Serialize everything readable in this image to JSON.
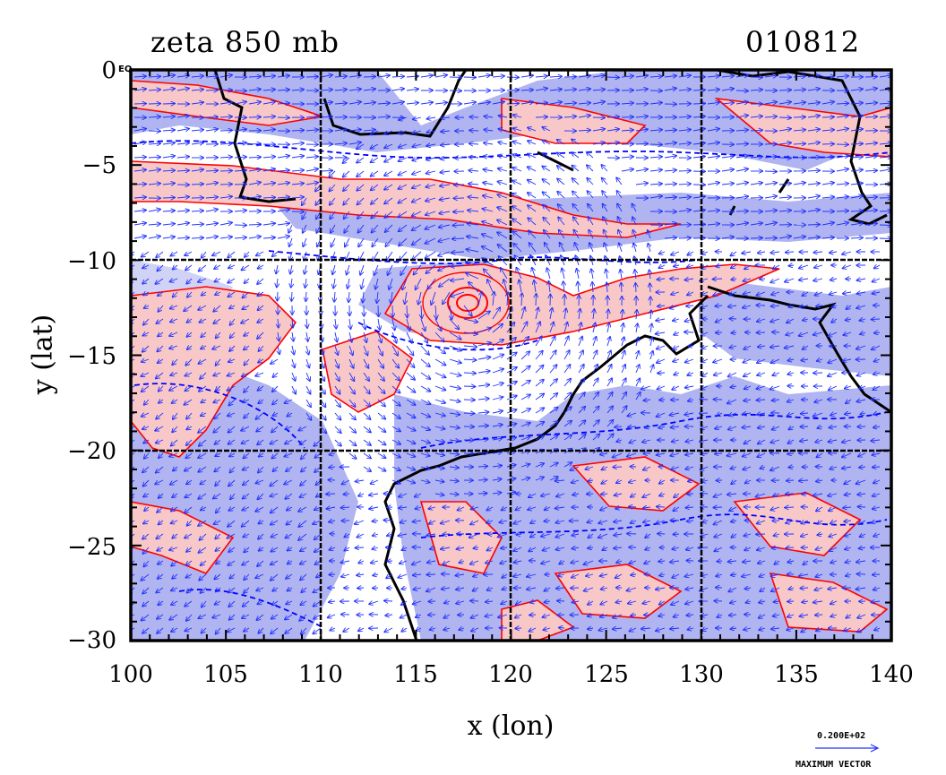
{
  "title_left": "zeta 850 mb",
  "title_right": "010812",
  "equator_label": "EQ",
  "xlabel": "x (lon)",
  "ylabel": "y (lat)",
  "x_ticks": [
    "100",
    "105",
    "110",
    "115",
    "120",
    "125",
    "130",
    "135",
    "140"
  ],
  "y_ticks": [
    "0",
    "−5",
    "−10",
    "−15",
    "−20",
    "−25",
    "−30"
  ],
  "vector_key": {
    "value": "0.200E+02",
    "label": "MAXIMUM VECTOR"
  },
  "colors": {
    "positive_fill": "#f8c8c8",
    "positive_line": "#ff0000",
    "negative_fill": "#b0b4f0",
    "negative_line": "#0000ff",
    "coastline": "#000000",
    "vectors": "#2030ff"
  },
  "chart_data": {
    "type": "contour map with wind vectors",
    "variable": "zeta 850 mb",
    "date": "010812",
    "xlim": [
      100,
      140
    ],
    "ylim": [
      -30,
      0
    ],
    "grid_lines_x": [
      110,
      120,
      130
    ],
    "grid_lines_y": [
      -10,
      -20
    ],
    "features": [
      {
        "name": "cyclonic vortex center",
        "lon": 117.6,
        "lat": -12.4
      }
    ]
  }
}
